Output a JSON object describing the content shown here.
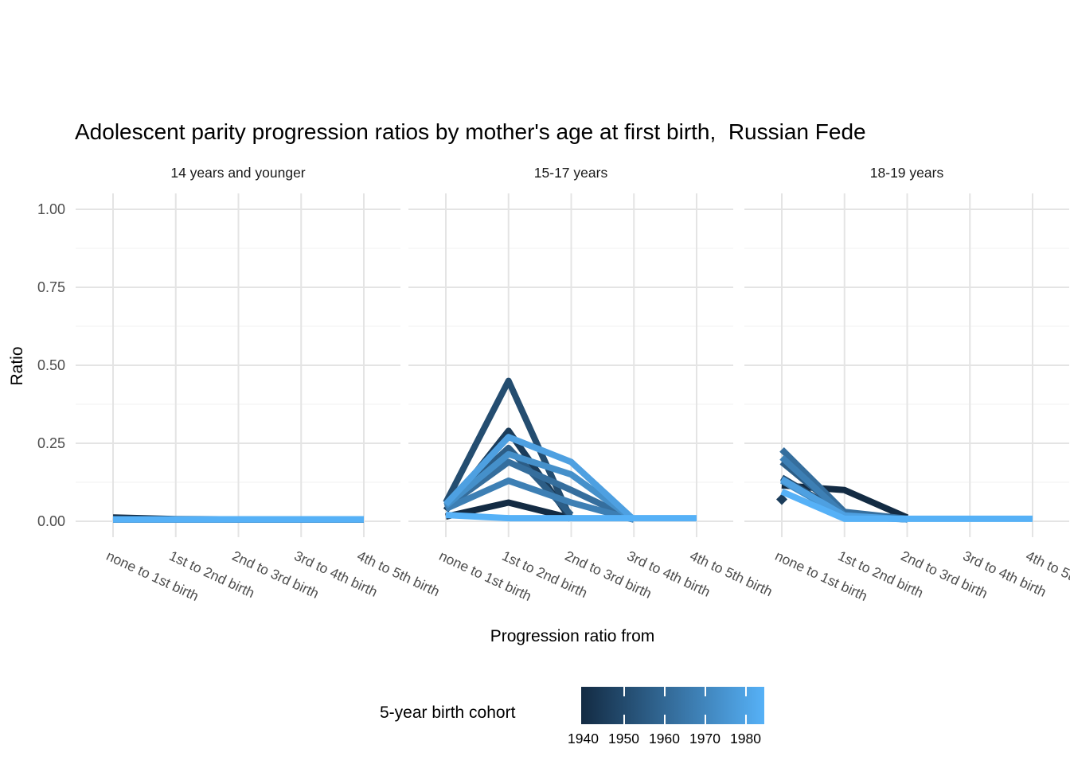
{
  "title": "Adolescent parity progression ratios by mother's age at first birth,  Russian Fede",
  "y_axis": {
    "label": "Ratio",
    "tick_labels": [
      "1.00",
      "0.75",
      "0.50",
      "0.25",
      "0.00"
    ],
    "tick_values": [
      1.0,
      0.75,
      0.5,
      0.25,
      0.0
    ]
  },
  "x_axis": {
    "label": "Progression ratio from",
    "categories": [
      "none to 1st birth",
      "1st to 2nd birth",
      "2nd to 3rd birth",
      "3rd to 4th birth",
      "4th to 5th birth"
    ]
  },
  "legend": {
    "title": "5-year birth cohort",
    "tick_labels": [
      "1940",
      "1950",
      "1960",
      "1970",
      "1980"
    ],
    "low_color": "#132B43",
    "high_color": "#56B1F7"
  },
  "chart_data": {
    "type": "line",
    "title": "Adolescent parity progression ratios by mother's age at first birth,  Russian Fede",
    "xlabel": "Progression ratio from",
    "ylabel": "Ratio",
    "ylim": [
      0,
      1
    ],
    "yticks_major": [
      0,
      0.25,
      0.5,
      0.75,
      1.0
    ],
    "yticks_minor": [
      0.125,
      0.375,
      0.625,
      0.875
    ],
    "grid": true,
    "legend_position": "bottom",
    "legend_title": "5-year birth cohort",
    "color_scale": {
      "low": "#132B43",
      "high": "#56B1F7",
      "min": 1940,
      "max": 1980,
      "step": 5
    },
    "categories": [
      "none to 1st birth",
      "1st to 2nd birth",
      "2nd to 3rd birth",
      "3rd to 4th birth",
      "4th to 5th birth"
    ],
    "facets": [
      {
        "label": "14 years and younger",
        "series": [
          {
            "name": "1940",
            "color": "#132B43",
            "values": [
              0.012,
              0.007,
              0.006,
              0.006,
              0.006
            ]
          },
          {
            "name": "1945",
            "color": "#1B3C5A",
            "values": [
              0.006,
              0.006,
              0.006,
              0.006,
              0.006
            ]
          },
          {
            "name": "1950",
            "color": "#244D70",
            "values": [
              0.006,
              0.006,
              0.006,
              0.006,
              0.006
            ]
          },
          {
            "name": "1955",
            "color": "#2C5D86",
            "values": [
              0.006,
              0.006,
              0.006,
              0.006,
              0.006
            ]
          },
          {
            "name": "1960",
            "color": "#356E9D",
            "values": [
              0.006,
              0.006,
              0.006,
              0.006,
              0.006
            ]
          },
          {
            "name": "1965",
            "color": "#3D7FB4",
            "values": [
              0.006,
              0.006,
              0.006,
              0.006,
              0.006
            ]
          },
          {
            "name": "1970",
            "color": "#4590CA",
            "values": [
              0.006,
              0.006,
              0.006,
              0.006,
              0.006
            ]
          },
          {
            "name": "1975",
            "color": "#4EA0E1",
            "values": [
              0.006,
              0.006,
              0.006,
              0.006,
              0.006
            ]
          },
          {
            "name": "1980",
            "color": "#56B1F7",
            "values": [
              0.006,
              0.006,
              0.006,
              0.006,
              0.006
            ]
          }
        ]
      },
      {
        "label": "15-17 years",
        "series": [
          {
            "name": "1940",
            "color": "#132B43",
            "values": [
              0.015,
              0.06,
              0.01,
              null,
              null
            ]
          },
          {
            "name": "1945",
            "color": "#1B3C5A",
            "values": [
              0.035,
              0.29,
              0.005,
              null,
              null
            ]
          },
          {
            "name": "1950",
            "color": "#244D70",
            "values": [
              0.06,
              0.45,
              0.005,
              null,
              null
            ]
          },
          {
            "name": "1955",
            "color": "#2C5D86",
            "values": [
              0.05,
              0.235,
              0.02,
              null,
              null
            ]
          },
          {
            "name": "1960",
            "color": "#356E9D",
            "values": [
              0.045,
              0.19,
              0.1,
              0.005,
              null
            ]
          },
          {
            "name": "1965",
            "color": "#3D7FB4",
            "values": [
              0.04,
              0.13,
              0.06,
              0.005,
              null
            ]
          },
          {
            "name": "1970",
            "color": "#4590CA",
            "values": [
              0.05,
              0.215,
              0.15,
              0.005,
              null
            ]
          },
          {
            "name": "1975",
            "color": "#4EA0E1",
            "values": [
              0.055,
              0.27,
              0.19,
              0.005,
              null
            ]
          },
          {
            "name": "1980",
            "color": "#56B1F7",
            "values": [
              0.02,
              0.01,
              0.01,
              0.01,
              0.01
            ]
          }
        ]
      },
      {
        "label": "18-19 years",
        "series": [
          {
            "name": "1940",
            "color": "#132B43",
            "values": [
              0.115,
              0.1,
              0.012,
              null,
              null
            ]
          },
          {
            "name": "1945",
            "color": "#1B3C5A",
            "values": [
              0.07,
              null,
              null,
              null,
              null
            ]
          },
          {
            "name": "1950",
            "color": "#244D70",
            "values": [
              0.14,
              0.02,
              0.006,
              null,
              null
            ]
          },
          {
            "name": "1955",
            "color": "#2C5D86",
            "values": [
              0.19,
              0.025,
              0.006,
              null,
              null
            ]
          },
          {
            "name": "1960",
            "color": "#356E9D",
            "values": [
              0.23,
              0.03,
              0.008,
              null,
              null
            ]
          },
          {
            "name": "1965",
            "color": "#3D7FB4",
            "values": [
              0.205,
              0.02,
              0.006,
              null,
              null
            ]
          },
          {
            "name": "1970",
            "color": "#4590CA",
            "values": [
              0.13,
              0.015,
              0.006,
              null,
              null
            ]
          },
          {
            "name": "1975",
            "color": "#4EA0E1",
            "values": [
              0.135,
              0.018,
              0.006,
              null,
              null
            ]
          },
          {
            "name": "1980",
            "color": "#56B1F7",
            "values": [
              0.095,
              0.008,
              0.008,
              0.008,
              0.008
            ]
          }
        ]
      }
    ]
  }
}
